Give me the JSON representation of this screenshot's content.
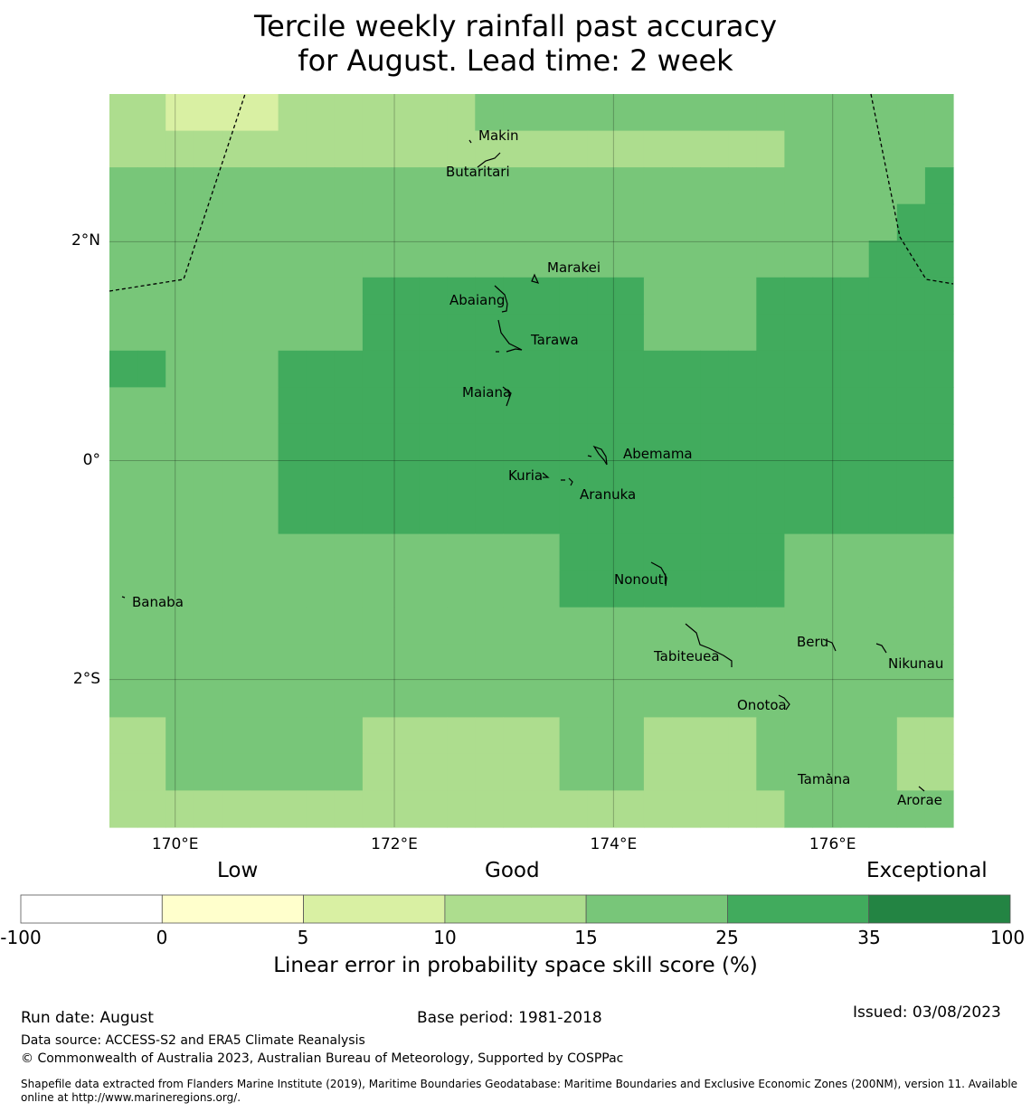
{
  "title_line1": "Tercile weekly rainfall past accuracy",
  "title_line2": "for August. Lead time: 2 week",
  "map": {
    "lon_range": [
      169.4,
      177.1
    ],
    "lat_range": [
      -3.35,
      3.35
    ],
    "x_ticks": [
      {
        "value": 170,
        "label": "170°E"
      },
      {
        "value": 172,
        "label": "172°E"
      },
      {
        "value": 174,
        "label": "174°E"
      },
      {
        "value": 176,
        "label": "176°E"
      }
    ],
    "y_ticks": [
      {
        "value": 2,
        "label": "2°N"
      },
      {
        "value": 0,
        "label": "0°"
      },
      {
        "value": -2,
        "label": "2°S"
      }
    ],
    "grid_lines": true,
    "grid_levels": [
      [
        3,
        3,
        2,
        2,
        2,
        2,
        3,
        3,
        3,
        3,
        3,
        3,
        3,
        4,
        4,
        4,
        4,
        4,
        4,
        4,
        4,
        4,
        4,
        4,
        4,
        4,
        4,
        4,
        4,
        4
      ],
      [
        3,
        3,
        3,
        3,
        3,
        3,
        3,
        3,
        3,
        3,
        3,
        3,
        3,
        3,
        3,
        3,
        3,
        3,
        3,
        3,
        3,
        3,
        3,
        3,
        4,
        4,
        4,
        4,
        4,
        4
      ],
      [
        4,
        4,
        4,
        4,
        4,
        4,
        4,
        4,
        4,
        4,
        4,
        4,
        4,
        4,
        4,
        4,
        4,
        4,
        4,
        4,
        4,
        4,
        4,
        4,
        4,
        4,
        4,
        4,
        4,
        5
      ],
      [
        4,
        4,
        4,
        4,
        4,
        4,
        4,
        4,
        4,
        4,
        4,
        4,
        4,
        4,
        4,
        4,
        4,
        4,
        4,
        4,
        4,
        4,
        4,
        4,
        4,
        4,
        4,
        4,
        5,
        5
      ],
      [
        4,
        4,
        4,
        4,
        4,
        4,
        4,
        4,
        4,
        4,
        4,
        4,
        4,
        4,
        4,
        4,
        4,
        4,
        4,
        4,
        4,
        4,
        4,
        4,
        4,
        4,
        4,
        5,
        5,
        5
      ],
      [
        4,
        4,
        4,
        4,
        4,
        4,
        4,
        4,
        4,
        5,
        5,
        5,
        5,
        5,
        5,
        5,
        5,
        5,
        5,
        4,
        4,
        4,
        4,
        5,
        5,
        5,
        5,
        5,
        5,
        5
      ],
      [
        4,
        4,
        4,
        4,
        4,
        4,
        4,
        4,
        4,
        5,
        5,
        5,
        5,
        5,
        5,
        5,
        5,
        5,
        5,
        4,
        4,
        4,
        4,
        5,
        5,
        5,
        5,
        5,
        5,
        5
      ],
      [
        5,
        5,
        4,
        4,
        4,
        4,
        5,
        5,
        5,
        5,
        5,
        5,
        5,
        5,
        5,
        5,
        5,
        5,
        5,
        5,
        5,
        5,
        5,
        5,
        5,
        5,
        5,
        5,
        5,
        5
      ],
      [
        4,
        4,
        4,
        4,
        4,
        4,
        5,
        5,
        5,
        5,
        5,
        5,
        5,
        5,
        5,
        5,
        5,
        5,
        5,
        5,
        5,
        5,
        5,
        5,
        5,
        5,
        5,
        5,
        5,
        5
      ],
      [
        4,
        4,
        4,
        4,
        4,
        4,
        5,
        5,
        5,
        5,
        5,
        5,
        5,
        5,
        5,
        5,
        5,
        5,
        5,
        5,
        5,
        5,
        5,
        5,
        5,
        5,
        5,
        5,
        5,
        5
      ],
      [
        4,
        4,
        4,
        4,
        4,
        4,
        5,
        5,
        5,
        5,
        5,
        5,
        5,
        5,
        5,
        5,
        5,
        5,
        5,
        5,
        5,
        5,
        5,
        5,
        5,
        5,
        5,
        5,
        5,
        5
      ],
      [
        4,
        4,
        4,
        4,
        4,
        4,
        5,
        5,
        5,
        5,
        5,
        5,
        5,
        5,
        5,
        5,
        5,
        5,
        5,
        5,
        5,
        5,
        5,
        5,
        5,
        5,
        5,
        5,
        5,
        5
      ],
      [
        4,
        4,
        4,
        4,
        4,
        4,
        4,
        4,
        4,
        4,
        4,
        4,
        4,
        4,
        4,
        4,
        5,
        5,
        5,
        5,
        5,
        5,
        5,
        5,
        4,
        4,
        4,
        4,
        4,
        4
      ],
      [
        4,
        4,
        4,
        4,
        4,
        4,
        4,
        4,
        4,
        4,
        4,
        4,
        4,
        4,
        4,
        4,
        5,
        5,
        5,
        5,
        5,
        5,
        5,
        5,
        4,
        4,
        4,
        4,
        4,
        4
      ],
      [
        4,
        4,
        4,
        4,
        4,
        4,
        4,
        4,
        4,
        4,
        4,
        4,
        4,
        4,
        4,
        4,
        4,
        4,
        4,
        4,
        4,
        4,
        4,
        4,
        4,
        4,
        4,
        4,
        4,
        4
      ],
      [
        4,
        4,
        4,
        4,
        4,
        4,
        4,
        4,
        4,
        4,
        4,
        4,
        4,
        4,
        4,
        4,
        4,
        4,
        4,
        4,
        4,
        4,
        4,
        4,
        4,
        4,
        4,
        4,
        4,
        4
      ],
      [
        4,
        4,
        4,
        4,
        4,
        4,
        4,
        4,
        4,
        4,
        4,
        4,
        4,
        4,
        4,
        4,
        4,
        4,
        4,
        4,
        4,
        4,
        4,
        4,
        4,
        4,
        4,
        4,
        4,
        4
      ],
      [
        3,
        3,
        4,
        4,
        4,
        4,
        4,
        4,
        4,
        3,
        3,
        3,
        3,
        3,
        3,
        3,
        4,
        4,
        4,
        3,
        3,
        3,
        3,
        4,
        4,
        4,
        4,
        4,
        3,
        3
      ],
      [
        3,
        3,
        4,
        4,
        4,
        4,
        4,
        4,
        4,
        3,
        3,
        3,
        3,
        3,
        3,
        3,
        4,
        4,
        4,
        3,
        3,
        3,
        3,
        4,
        4,
        4,
        4,
        4,
        3,
        3
      ],
      [
        3,
        3,
        3,
        3,
        3,
        3,
        3,
        3,
        3,
        3,
        3,
        3,
        3,
        3,
        3,
        3,
        3,
        3,
        3,
        3,
        3,
        3,
        3,
        3,
        4,
        4,
        4,
        4,
        4,
        4
      ]
    ],
    "places": [
      {
        "name": "Makin"
      },
      {
        "name": "Butaritari"
      },
      {
        "name": "Marakei"
      },
      {
        "name": "Abaiang"
      },
      {
        "name": "Tarawa"
      },
      {
        "name": "Maiana"
      },
      {
        "name": "Abemama"
      },
      {
        "name": "Kuria"
      },
      {
        "name": "Aranuka"
      },
      {
        "name": "Nonouti"
      },
      {
        "name": "Banaba"
      },
      {
        "name": "Tabiteuea"
      },
      {
        "name": "Beru"
      },
      {
        "name": "Nikunau"
      },
      {
        "name": "Onotoa"
      },
      {
        "name": "Tamana"
      },
      {
        "name": "Arorae"
      }
    ]
  },
  "colorbar": {
    "colors": [
      "#ffffff",
      "#ffffcc",
      "#d9f0a3",
      "#addd8e",
      "#78c679",
      "#41ab5d",
      "#238443"
    ],
    "boundaries": [
      "-100",
      "0",
      "5",
      "10",
      "15",
      "25",
      "35",
      "100"
    ],
    "categories": [
      "Low",
      "Good",
      "Exceptional"
    ],
    "label": "Linear error in probability space skill score (%)"
  },
  "footer": {
    "run_date": "Run date: August",
    "base_period": "Base period: 1981-2018",
    "issued": "Issued: 03/08/2023",
    "data_source": "Data source: ACCESS-S2 and ERA5 Climate Reanalysis",
    "copyright": "© Commonwealth of Australia 2023, Australian Bureau of Meteorology, Supported by COSPPac",
    "shapefile_note": "Shapefile data extracted from Flanders Marine Institute (2019), Maritime Boundaries Geodatabase: Maritime Boundaries and Exclusive Economic Zones (200NM), version 11. Available online at http://www.marineregions.org/."
  }
}
